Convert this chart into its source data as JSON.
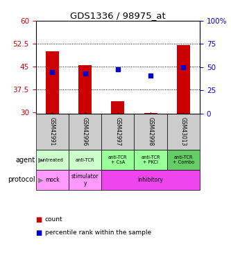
{
  "title": "GDS1336 / 98975_at",
  "samples": [
    "GSM42991",
    "GSM42996",
    "GSM42997",
    "GSM42998",
    "GSM43013"
  ],
  "bar_tops": [
    50.0,
    45.5,
    33.5,
    29.8,
    52.0
  ],
  "bar_base": 29.5,
  "left_ylim": [
    29.5,
    60
  ],
  "left_yticks": [
    30,
    37.5,
    45,
    52.5,
    60
  ],
  "left_yticklabels": [
    "30",
    "37.5",
    "45",
    "52.5",
    "60"
  ],
  "right_yticks_pct": [
    0,
    25,
    50,
    75,
    100
  ],
  "right_yticklabels": [
    "0",
    "25",
    "50",
    "75",
    "100%"
  ],
  "pct_dots_pct": [
    44.5,
    43.5,
    48.0,
    41.0,
    50.0
  ],
  "bar_color": "#cc0000",
  "percentile_color": "#0000cc",
  "agent_labels": [
    "untreated",
    "anti-TCR",
    "anti-TCR\n+ CsA",
    "anti-TCR\n+ PKCi",
    "anti-TCR\n+ Combo"
  ],
  "agent_bg_colors": [
    "#ccffcc",
    "#ccffcc",
    "#99ff99",
    "#99ff99",
    "#66cc66"
  ],
  "protocol_spans": [
    {
      "label": "mock",
      "start": 0,
      "end": 1,
      "color": "#ff99ff"
    },
    {
      "label": "stimulator\ny",
      "start": 1,
      "end": 2,
      "color": "#ff99ff"
    },
    {
      "label": "inhibitory",
      "start": 2,
      "end": 5,
      "color": "#ee44ee"
    }
  ],
  "sample_bg_color": "#cccccc",
  "legend_count_color": "#cc0000",
  "legend_pct_color": "#0000cc"
}
